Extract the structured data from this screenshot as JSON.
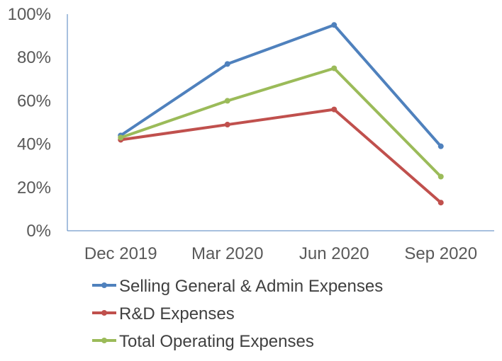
{
  "chart_data": {
    "type": "line",
    "title": "",
    "xlabel": "",
    "ylabel": "",
    "categories": [
      "Dec 2019",
      "Mar 2020",
      "Jun 2020",
      "Sep 2020"
    ],
    "ylim": [
      0,
      100
    ],
    "yticks": [
      0,
      20,
      40,
      60,
      80,
      100
    ],
    "ytick_labels": [
      "0%",
      "20%",
      "40%",
      "60%",
      "80%",
      "100%"
    ],
    "grid": false,
    "legend_position": "bottom",
    "series": [
      {
        "name": "Selling General & Admin Expenses",
        "color": "#4f81bd",
        "values": [
          44,
          77,
          95,
          39
        ]
      },
      {
        "name": "R&D Expenses",
        "color": "#c0504d",
        "values": [
          42,
          49,
          56,
          13
        ]
      },
      {
        "name": "Total Operating Expenses",
        "color": "#9bbb59",
        "values": [
          43,
          60,
          75,
          25
        ]
      }
    ]
  }
}
